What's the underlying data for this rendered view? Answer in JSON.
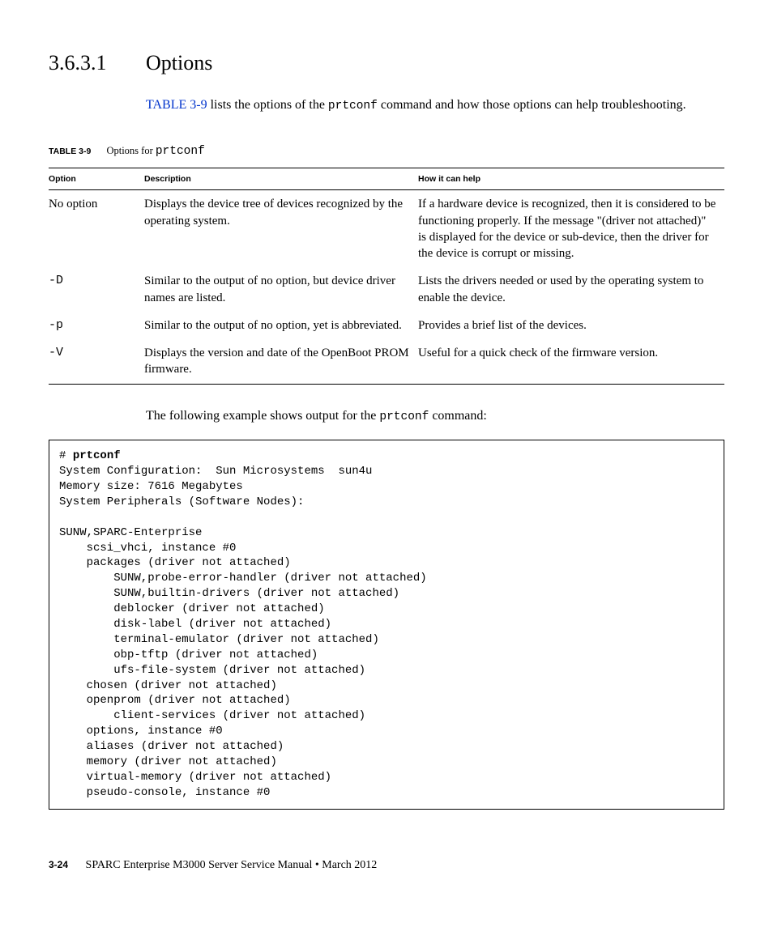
{
  "heading": {
    "number": "3.6.3.1",
    "title": "Options"
  },
  "intro": {
    "link": "TABLE 3-9",
    "text1": " lists the options of the ",
    "code": "prtconf",
    "text2": " command and how those options can help troubleshooting."
  },
  "table": {
    "label": "TABLE 3-9",
    "caption_prefix": "Options for ",
    "caption_code": "prtconf",
    "headers": {
      "c0": "Option",
      "c1": "Description",
      "c2": "How it can help"
    },
    "rows": [
      {
        "opt": "No option",
        "opt_mono": false,
        "desc": "Displays the device tree of devices recognized by the operating system.",
        "help": "If a hardware device is recognized, then it is considered to be functioning properly. If the message \"(driver not attached)\" is displayed for the device or sub-device, then the driver for the device is corrupt or missing."
      },
      {
        "opt": "-D",
        "opt_mono": true,
        "desc": "Similar to the output of no option, but device driver names are listed.",
        "help": "Lists the drivers needed or used by the operating system to enable the device."
      },
      {
        "opt": "-p",
        "opt_mono": true,
        "desc": "Similar to the output of no option, yet is abbreviated.",
        "help": "Provides a brief list of the devices."
      },
      {
        "opt": "-V",
        "opt_mono": true,
        "desc": "Displays the version and date of the OpenBoot PROM firmware.",
        "help": "Useful for a quick check of the firmware version."
      }
    ]
  },
  "example": {
    "intro_pre": "The following example shows output for the ",
    "intro_code": "prtconf",
    "intro_post": " command:",
    "prompt": "# ",
    "cmd": "prtconf",
    "body": "System Configuration:  Sun Microsystems  sun4u\nMemory size: 7616 Megabytes\nSystem Peripherals (Software Nodes):\n\nSUNW,SPARC-Enterprise\n    scsi_vhci, instance #0\n    packages (driver not attached)\n        SUNW,probe-error-handler (driver not attached)\n        SUNW,builtin-drivers (driver not attached)\n        deblocker (driver not attached)\n        disk-label (driver not attached)\n        terminal-emulator (driver not attached)\n        obp-tftp (driver not attached)\n        ufs-file-system (driver not attached)\n    chosen (driver not attached)\n    openprom (driver not attached)\n        client-services (driver not attached)\n    options, instance #0\n    aliases (driver not attached)\n    memory (driver not attached)\n    virtual-memory (driver not attached)\n    pseudo-console, instance #0"
  },
  "footer": {
    "pagenum": "3-24",
    "title": "SPARC Enterprise M3000 Server Service Manual • March 2012"
  }
}
